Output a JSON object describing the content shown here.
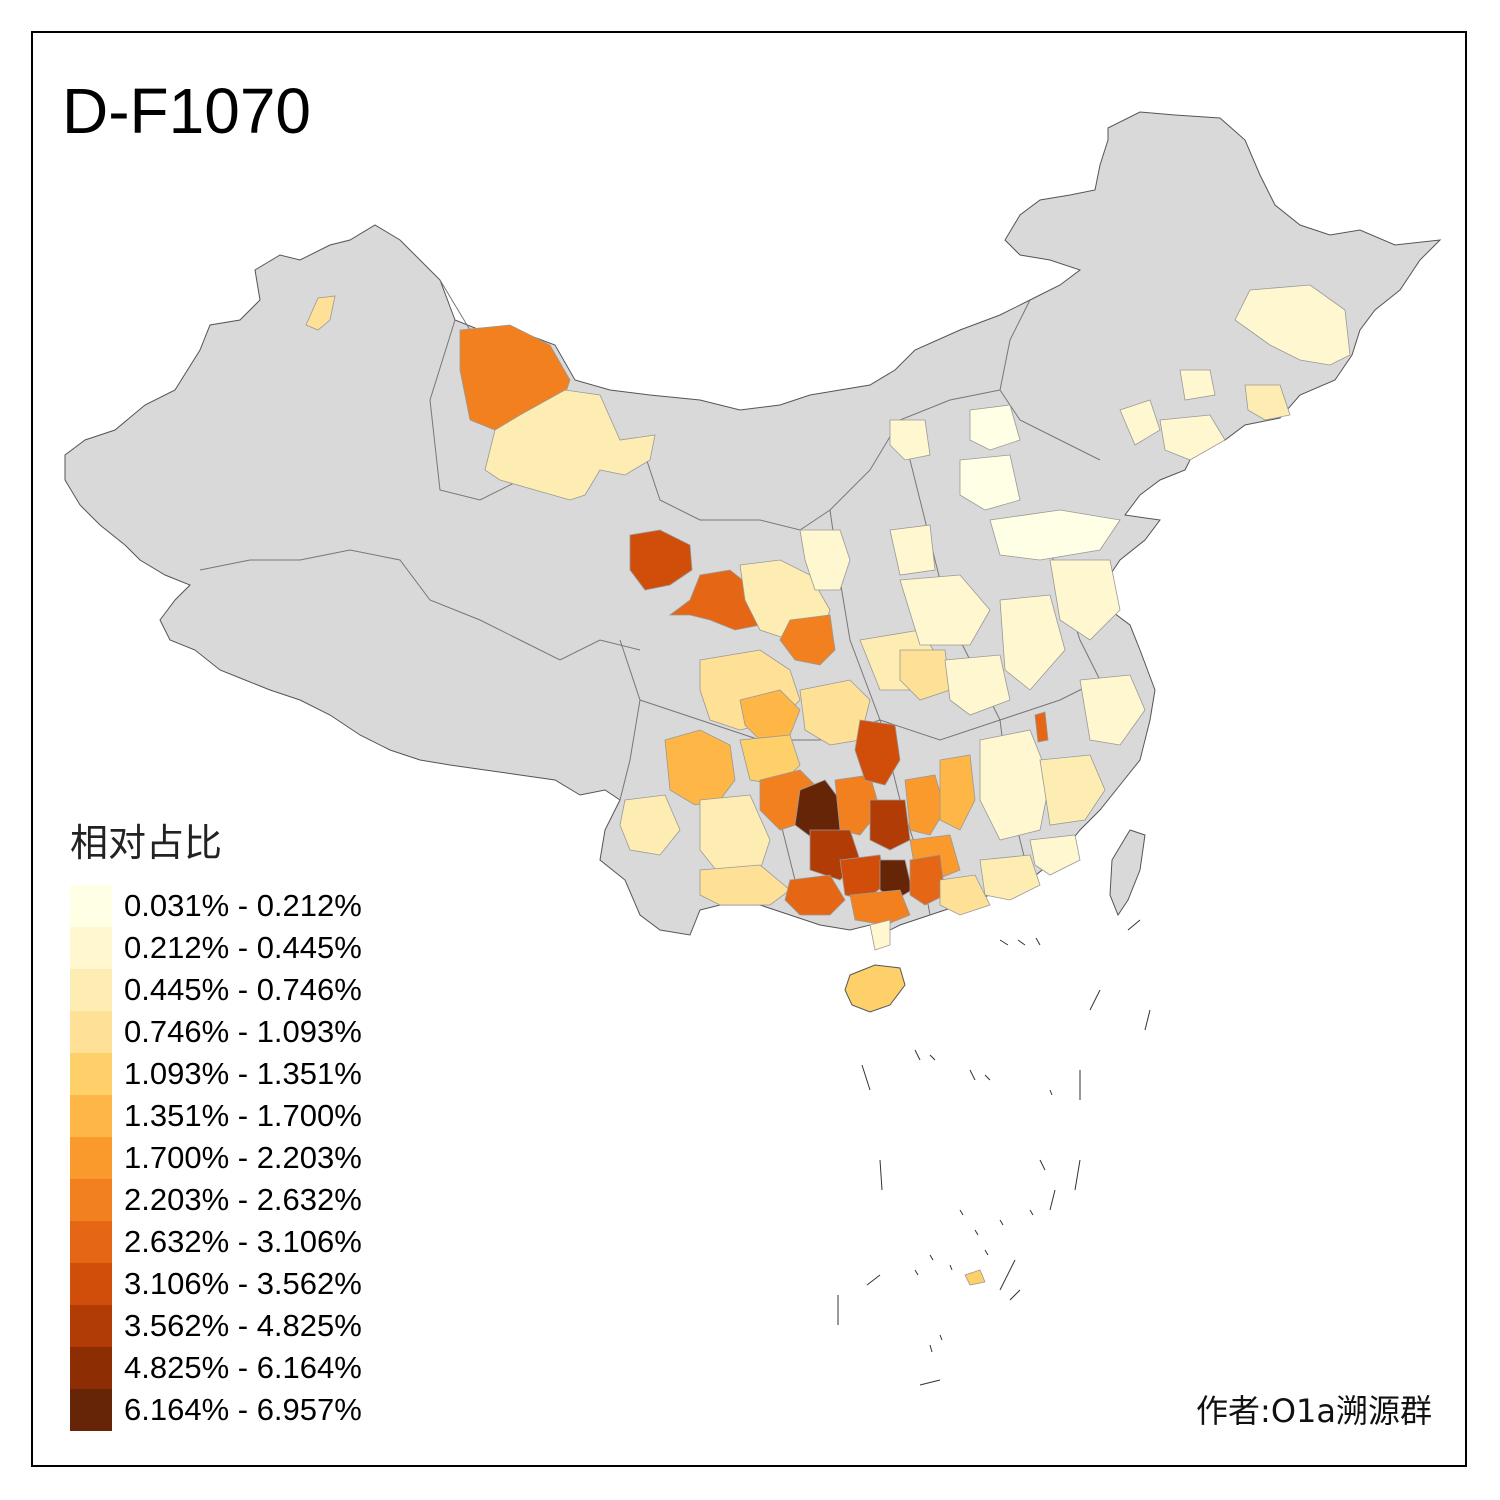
{
  "title": "D-F1070",
  "legend": {
    "title": "相对占比",
    "bins": [
      {
        "label": "0.031% - 0.212%",
        "color": "#FFFFE5"
      },
      {
        "label": "0.212% - 0.445%",
        "color": "#FFF7CF"
      },
      {
        "label": "0.445% - 0.746%",
        "color": "#FEEDB3"
      },
      {
        "label": "0.746% - 1.093%",
        "color": "#FEE197"
      },
      {
        "label": "1.093% - 1.351%",
        "color": "#FED06A"
      },
      {
        "label": "1.351% - 1.700%",
        "color": "#FEB646"
      },
      {
        "label": "1.700% - 2.203%",
        "color": "#FB9A2C"
      },
      {
        "label": "2.203% - 2.632%",
        "color": "#F2801F"
      },
      {
        "label": "2.632% - 3.106%",
        "color": "#E56614"
      },
      {
        "label": "3.106% - 3.562%",
        "color": "#D04E0A"
      },
      {
        "label": "3.562% - 4.825%",
        "color": "#B23C05"
      },
      {
        "label": "4.825% - 6.164%",
        "color": "#8C2D04"
      },
      {
        "label": "6.164% - 6.957%",
        "color": "#662506"
      }
    ]
  },
  "no_data_color": "#D9D9D9",
  "credit": "作者:O1a溯源群"
}
